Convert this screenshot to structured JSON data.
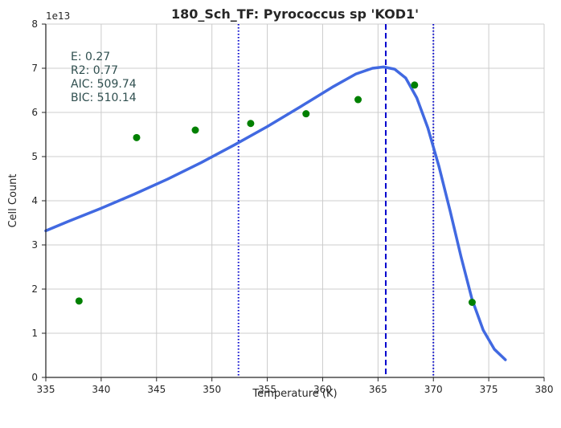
{
  "chart_data": {
    "type": "scatter",
    "title": "180_Sch_TF: Pyrococcus sp 'KOD1'",
    "xlabel": "Temperature (K)",
    "ylabel": "Cell Count",
    "y_offset_label": "1e13",
    "xlim": [
      335,
      380
    ],
    "ylim": [
      0,
      8
    ],
    "y_scale": 10000000000000.0,
    "grid": true,
    "x_ticks": [
      335,
      340,
      345,
      350,
      355,
      360,
      365,
      370,
      375,
      380
    ],
    "y_ticks": [
      0,
      1,
      2,
      3,
      4,
      5,
      6,
      7,
      8
    ],
    "points": {
      "color": "#008000",
      "x": [
        338.0,
        343.2,
        348.5,
        353.5,
        358.5,
        363.2,
        368.3,
        373.5
      ],
      "y": [
        1.73,
        5.43,
        5.6,
        5.75,
        5.97,
        6.29,
        6.62,
        1.7
      ]
    },
    "fit": {
      "color": "#4169e1",
      "x": [
        335,
        337,
        340,
        343,
        346,
        349,
        352,
        355,
        358,
        361,
        363,
        364.5,
        365.5,
        366.5,
        367.5,
        368.5,
        369.5,
        370.5,
        371.5,
        372.5,
        373.5,
        374.5,
        375.5,
        376.5
      ],
      "y": [
        3.32,
        3.53,
        3.83,
        4.15,
        4.49,
        4.86,
        5.26,
        5.68,
        6.13,
        6.59,
        6.87,
        7.0,
        7.03,
        6.98,
        6.78,
        6.33,
        5.65,
        4.78,
        3.78,
        2.73,
        1.76,
        1.07,
        0.64,
        0.4
      ]
    },
    "vlines": [
      {
        "x": 352.4,
        "style": "dotted",
        "color": "#0000cd"
      },
      {
        "x": 365.7,
        "style": "dashed",
        "color": "#0000cd"
      },
      {
        "x": 370.0,
        "style": "dotted",
        "color": "#0000cd"
      }
    ],
    "stats_lines": [
      "E:  0.27",
      "R2:  0.77",
      "AIC: 509.74",
      "BIC: 510.14"
    ]
  }
}
